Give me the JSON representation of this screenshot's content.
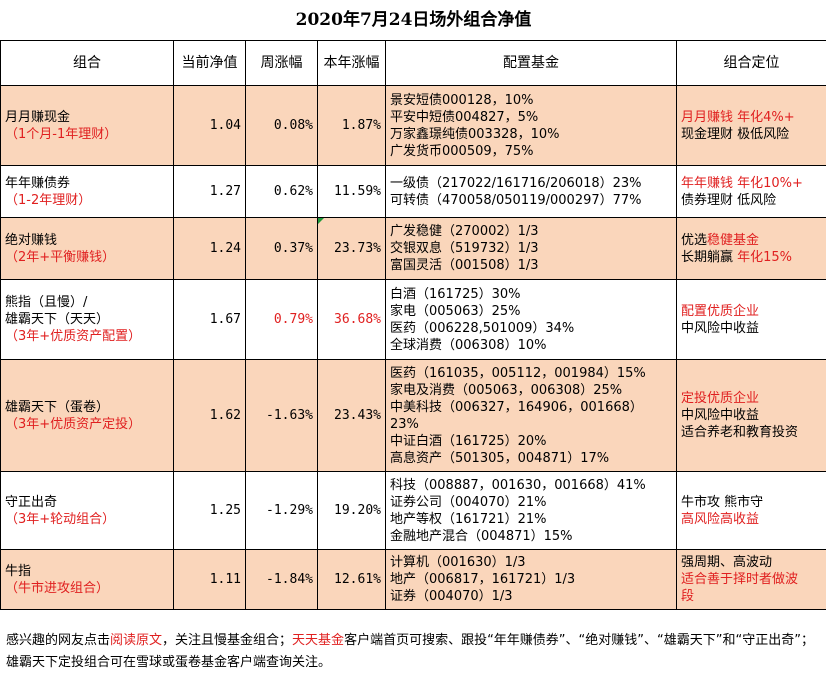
{
  "title": "2020年7月24日场外组合净值",
  "headers": {
    "portfolio": "组合",
    "nav": "当前净值",
    "weekly": "周涨幅",
    "ytd": "本年涨幅",
    "funds": "配置基金",
    "position": "组合定位"
  },
  "rows": [
    {
      "name": "月月赚现金",
      "sub": "（1个月-1年理财）",
      "nav": "1.04",
      "weekly": "0.08%",
      "ytd": "1.87%",
      "funds": [
        "景安短债000128，10%",
        "平安中短债004827，5%",
        "万家鑫璟纯债003328，10%",
        "广发货币000509，75%"
      ],
      "pos_red": "月月赚钱  年化4%+",
      "pos_black": "现金理财  极低风险"
    },
    {
      "name": "年年赚债券",
      "sub": "（1-2年理财）",
      "nav": "1.27",
      "weekly": "0.62%",
      "ytd": "11.59%",
      "funds": [
        "一级债（217022/161716/206018）23%",
        "可转债（470058/050119/000297）77%"
      ],
      "pos_red": "年年赚钱  年化10%+",
      "pos_black": "债券理财  低风险"
    },
    {
      "name": "绝对赚钱",
      "sub": "（2年+平衡赚钱）",
      "nav": "1.24",
      "weekly": "0.37%",
      "ytd": "23.73%",
      "funds": [
        "广发稳健（270002）1/3",
        "交银双息（519732）1/3",
        "富国灵活（001508）1/3"
      ],
      "pos_a1": "优选",
      "pos_a2": "稳健基金",
      "pos_b1": "长期躺赢  ",
      "pos_b2": "年化15%"
    },
    {
      "name1": "熊指（且慢）/",
      "name2": "雄霸天下（天天）",
      "sub": "（3年+优质资产配置）",
      "nav": "1.67",
      "weekly": "0.79%",
      "ytd": "36.68%",
      "funds": [
        "白酒（161725）30%",
        "家电（005063）25%",
        "医药（006228,501009）34%",
        "全球消费（006308）10%"
      ],
      "pos_red": "配置优质企业",
      "pos_black": "中风险中收益"
    },
    {
      "name": "雄霸天下（蛋卷）",
      "sub": "（3年+优质资产定投）",
      "nav": "1.62",
      "weekly": "-1.63%",
      "ytd": "23.43%",
      "funds": [
        "医药（161035，005112，001984）15%",
        "家电及消费（005063，006308）25%",
        "中美科技（006327，164906，001668）",
        "23%",
        "中证白酒（161725）20%",
        "高息资产（501305，004871）17%"
      ],
      "pos_red": "定投优质企业",
      "pos_black": "中风险中收益",
      "pos_black2": "适合养老和教育投资"
    },
    {
      "name": "守正出奇",
      "sub": "（3年+轮动组合）",
      "nav": "1.25",
      "weekly": "-1.29%",
      "ytd": "19.20%",
      "funds": [
        "科技（008887，001630，001668）41%",
        "证券公司（004070）21%",
        "地产等权（161721）21%",
        "金融地产混合（004871）15%"
      ],
      "pos_black": "牛市攻  熊市守",
      "pos_red": "高风险高收益"
    },
    {
      "name": "牛指",
      "sub": "（牛市进攻组合）",
      "nav": "1.11",
      "weekly": "-1.84%",
      "ytd": "12.61%",
      "funds": [
        "计算机（001630）1/3",
        "地产（006817，161721）1/3",
        "证券（004070）1/3"
      ],
      "pos_black": "强周期、高波动",
      "pos_red1": "适合善于择时者做波",
      "pos_red2": "段"
    }
  ],
  "footer": {
    "t1": "感兴趣的网友点击",
    "t2": "阅读原文",
    "t3": "，关注且慢基金组合；",
    "t4": "天天基金",
    "t5": "客户端首页可搜索、跟投“年年赚债券”、“绝对赚钱”、“雄霸天下”和“守正出奇”；雄霸天下定投组合可在雪球或蛋卷基金客户端查询关注。"
  },
  "colors": {
    "peach": "#fad6bb",
    "red": "#e02020",
    "flag": "#1f9a3a"
  }
}
